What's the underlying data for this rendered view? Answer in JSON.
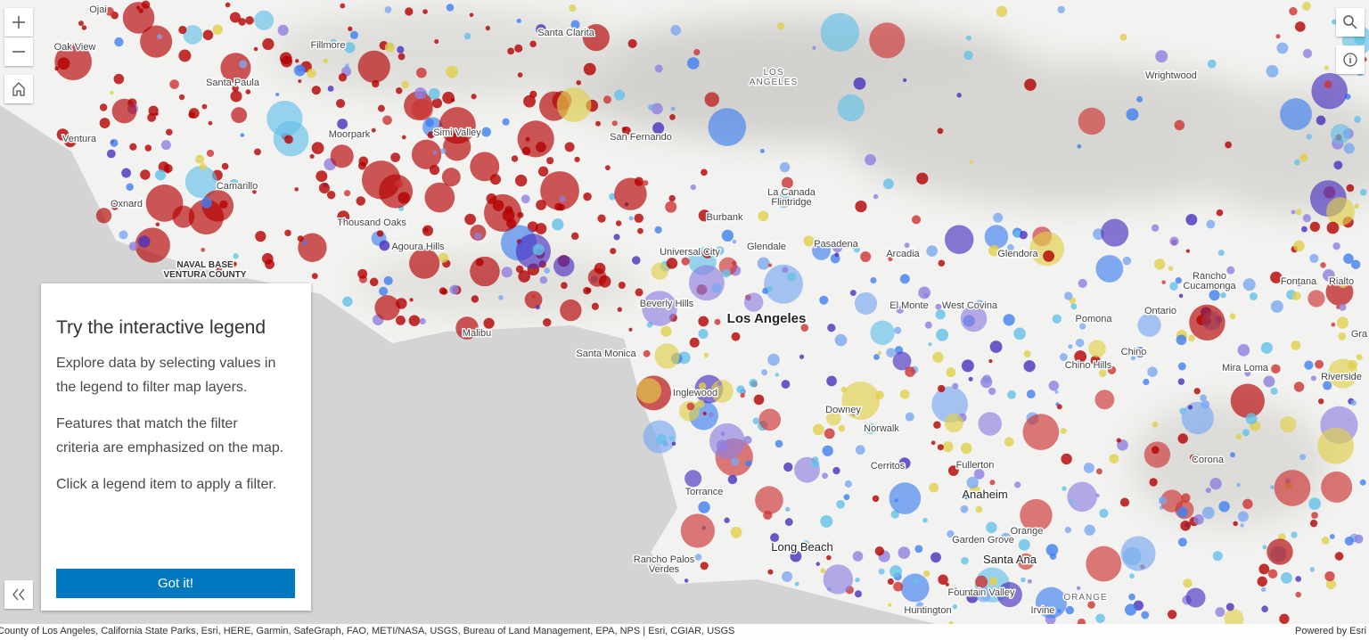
{
  "places": [
    {
      "lines": [
        "Ojai"
      ]
    },
    {
      "lines": [
        "Oak View"
      ]
    },
    {
      "lines": [
        "Fillmore"
      ]
    },
    {
      "lines": [
        "Santa Clarita"
      ]
    },
    {
      "lines": [
        "Santa Paula"
      ]
    },
    {
      "lines": [
        "Ventura"
      ]
    },
    {
      "lines": [
        "Moorpark"
      ]
    },
    {
      "lines": [
        "Simi Valley"
      ]
    },
    {
      "lines": [
        "San Fernando"
      ]
    },
    {
      "lines": [
        "LOS",
        "ANGELES"
      ]
    },
    {
      "lines": [
        "Wrightwood"
      ]
    },
    {
      "lines": [
        "Camarillo"
      ]
    },
    {
      "lines": [
        "Oxnard"
      ]
    },
    {
      "lines": [
        "Thousand Oaks"
      ]
    },
    {
      "lines": [
        "Agoura Hills"
      ]
    },
    {
      "lines": [
        "NAVAL BASE",
        "VENTURA COUNTY"
      ]
    },
    {
      "lines": [
        "Burbank"
      ]
    },
    {
      "lines": [
        "La Canada",
        "Flintridge"
      ]
    },
    {
      "lines": [
        "Glendale"
      ]
    },
    {
      "lines": [
        "Pasadena"
      ]
    },
    {
      "lines": [
        "Universal City"
      ]
    },
    {
      "lines": [
        "Arcadia"
      ]
    },
    {
      "lines": [
        "Glendora"
      ]
    },
    {
      "lines": [
        "Rancho",
        "Cucamonga"
      ]
    },
    {
      "lines": [
        "Fontana"
      ]
    },
    {
      "lines": [
        "Rialto"
      ]
    },
    {
      "lines": [
        "Beverly Hills"
      ]
    },
    {
      "lines": [
        "Los Angeles"
      ]
    },
    {
      "lines": [
        "El Monte"
      ]
    },
    {
      "lines": [
        "West Covina"
      ]
    },
    {
      "lines": [
        "Pomona"
      ]
    },
    {
      "lines": [
        "Ontario"
      ]
    },
    {
      "lines": [
        "Malibu"
      ]
    },
    {
      "lines": [
        "Santa Monica"
      ]
    },
    {
      "lines": [
        "Chino Hills"
      ]
    },
    {
      "lines": [
        "Chino"
      ]
    },
    {
      "lines": [
        "Mira Loma"
      ]
    },
    {
      "lines": [
        "Riverside"
      ]
    },
    {
      "lines": [
        "Inglewood"
      ]
    },
    {
      "lines": [
        "Downey"
      ]
    },
    {
      "lines": [
        "Norwalk"
      ]
    },
    {
      "lines": [
        "Cerritos"
      ]
    },
    {
      "lines": [
        "Fullerton"
      ]
    },
    {
      "lines": [
        "Corona"
      ]
    },
    {
      "lines": [
        "Torrance"
      ]
    },
    {
      "lines": [
        "Anaheim"
      ]
    },
    {
      "lines": [
        "Garden Grove"
      ]
    },
    {
      "lines": [
        "Orange"
      ]
    },
    {
      "lines": [
        "Long Beach"
      ]
    },
    {
      "lines": [
        "Santa Ana"
      ]
    },
    {
      "lines": [
        "Rancho Palos",
        "Verdes"
      ]
    },
    {
      "lines": [
        "Fountain Valley"
      ]
    },
    {
      "lines": [
        "Huntington"
      ]
    },
    {
      "lines": [
        "Irvine"
      ]
    },
    {
      "lines": [
        "ORANGE"
      ]
    },
    {
      "lines": [
        "Gra"
      ]
    }
  ],
  "panel": {
    "title": "Try the interactive legend",
    "paragraphs": [
      "Explore data by selecting values in the legend to filter map layers.",
      "Features that match the filter criteria are emphasized on the map.",
      "Click a legend item to apply a filter."
    ],
    "button": "Got it!"
  },
  "attribution": "County of Los Angeles, California State Parks, Esri, HERE, Garmin, SafeGraph, FAO, METI/NASA, USGS, Bureau of Land Management, EPA, NPS | Esri, CGIAR, USGS",
  "powered_by": "Powered by Esri"
}
